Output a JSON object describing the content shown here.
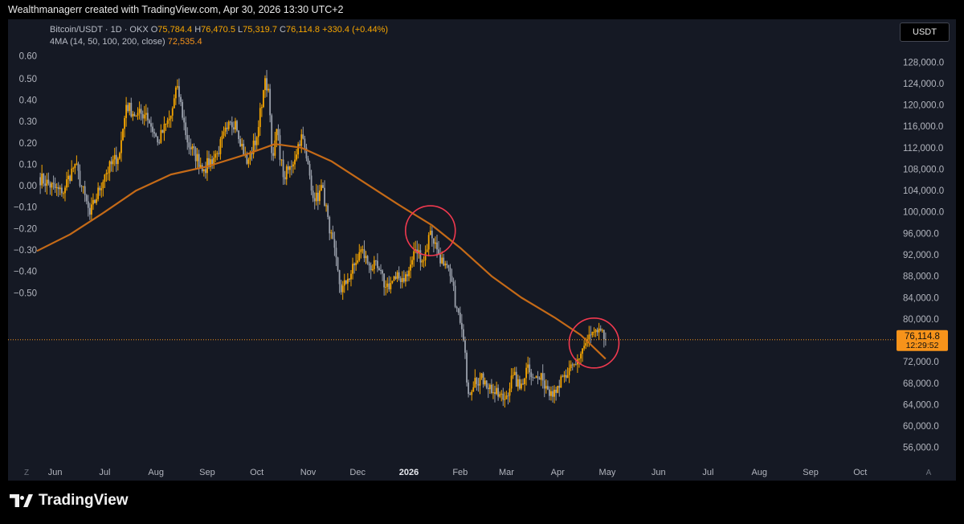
{
  "header": {
    "text": "Wealthmanagerr created with TradingView.com, Apr 30, 2026 13:30 UTC+2"
  },
  "legend": {
    "symbol": "Bitcoin/USDT · 1D · OKX",
    "open_label": "O",
    "open": "75,784.4",
    "high_label": "H",
    "high": "76,470.5",
    "low_label": "L",
    "low": "75,319.7",
    "close_label": "C",
    "close": "76,114.8",
    "change": "+330.4 (+0.44%)",
    "ma_label": "4MA (14, 50, 100, 200, close)",
    "ma_value": "72,535.4"
  },
  "currency_button": "USDT",
  "price_badge": {
    "price": "76,114.8",
    "countdown": "12:29:52"
  },
  "footer": {
    "brand": "TradingView"
  },
  "nav": {
    "left": "Z",
    "right": "A"
  },
  "colors": {
    "panel_bg": "#151924",
    "ma_line": "#c56a17",
    "candle_gray": "#9aa0ab",
    "candle_orange": "#f7a600",
    "circle": "#f0394f",
    "last_price": "#f7931a"
  },
  "chart_data": {
    "type": "candlestick",
    "title": "Bitcoin/USDT · 1D · OKX",
    "right_axis": {
      "unit": "USDT",
      "ticks": [
        "128,000.0",
        "124,000.0",
        "120,000.0",
        "116,000.0",
        "112,000.0",
        "108,000.0",
        "104,000.0",
        "100,000.0",
        "96,000.0",
        "92,000.0",
        "88,000.0",
        "84,000.0",
        "80,000.0",
        "76,000.0",
        "72,000.0",
        "68,000.0",
        "64,000.0",
        "60,000.0",
        "56,000.0"
      ],
      "tick_values": [
        128000,
        124000,
        120000,
        116000,
        112000,
        108000,
        104000,
        100000,
        96000,
        92000,
        88000,
        84000,
        80000,
        76000,
        72000,
        68000,
        64000,
        60000,
        56000
      ],
      "range": [
        54000,
        133000
      ]
    },
    "left_axis": {
      "ticks": [
        "0.60",
        "0.50",
        "0.40",
        "0.30",
        "0.20",
        "0.10",
        "0.00",
        "−0.10",
        "−0.20",
        "−0.30",
        "−0.40",
        "−0.50"
      ],
      "tick_values": [
        0.6,
        0.5,
        0.4,
        0.3,
        0.2,
        0.1,
        0.0,
        -0.1,
        -0.2,
        -0.3,
        -0.4,
        -0.5
      ]
    },
    "x_axis": {
      "labels": [
        "Jun",
        "Jul",
        "Aug",
        "Sep",
        "Oct",
        "Nov",
        "Dec",
        "2026",
        "Feb",
        "Mar",
        "Apr",
        "May",
        "Jun",
        "Jul",
        "Aug",
        "Sep",
        "Oct"
      ],
      "dates": [
        "2025-06-01",
        "2025-07-01",
        "2025-08-01",
        "2025-09-01",
        "2025-10-01",
        "2025-11-01",
        "2025-12-01",
        "2026-01-01",
        "2026-02-01",
        "2026-03-01",
        "2026-04-01",
        "2026-05-01",
        "2026-06-01",
        "2026-07-01",
        "2026-08-01",
        "2026-09-01",
        "2026-10-01"
      ],
      "bold": [
        "2026"
      ],
      "range": [
        "2025-05-21",
        "2026-10-22"
      ]
    },
    "price_anchors": [
      [
        "2025-05-22",
        106500
      ],
      [
        "2025-06-05",
        103500
      ],
      [
        "2025-06-13",
        109000
      ],
      [
        "2025-06-22",
        99500
      ],
      [
        "2025-07-01",
        107000
      ],
      [
        "2025-07-10",
        111000
      ],
      [
        "2025-07-14",
        120000
      ],
      [
        "2025-07-20",
        118000
      ],
      [
        "2025-07-26",
        118500
      ],
      [
        "2025-08-02",
        113000
      ],
      [
        "2025-08-10",
        118000
      ],
      [
        "2025-08-14",
        123500
      ],
      [
        "2025-08-20",
        113000
      ],
      [
        "2025-08-30",
        108000
      ],
      [
        "2025-09-07",
        111000
      ],
      [
        "2025-09-13",
        115500
      ],
      [
        "2025-09-18",
        117000
      ],
      [
        "2025-09-25",
        109000
      ],
      [
        "2025-10-01",
        114000
      ],
      [
        "2025-10-06",
        125000
      ],
      [
        "2025-10-08",
        123000
      ],
      [
        "2025-10-10",
        111000
      ],
      [
        "2025-10-11",
        110500
      ],
      [
        "2025-10-13",
        115500
      ],
      [
        "2025-10-17",
        106500
      ],
      [
        "2025-10-22",
        108500
      ],
      [
        "2025-10-28",
        114500
      ],
      [
        "2025-10-31",
        110000
      ],
      [
        "2025-11-05",
        102000
      ],
      [
        "2025-11-10",
        104500
      ],
      [
        "2025-11-14",
        96000
      ],
      [
        "2025-11-18",
        91500
      ],
      [
        "2025-11-21",
        85000
      ],
      [
        "2025-11-25",
        87500
      ],
      [
        "2025-11-30",
        90500
      ],
      [
        "2025-12-03",
        93000
      ],
      [
        "2025-12-08",
        90000
      ],
      [
        "2025-12-13",
        89500
      ],
      [
        "2025-12-18",
        86000
      ],
      [
        "2025-12-24",
        87500
      ],
      [
        "2025-12-31",
        88000
      ],
      [
        "2026-01-05",
        93000
      ],
      [
        "2026-01-10",
        91000
      ],
      [
        "2026-01-14",
        96500
      ],
      [
        "2026-01-18",
        93000
      ],
      [
        "2026-01-22",
        90000
      ],
      [
        "2026-01-26",
        88000
      ],
      [
        "2026-01-30",
        82000
      ],
      [
        "2026-02-03",
        76000
      ],
      [
        "2026-02-06",
        66000
      ],
      [
        "2026-02-10",
        69000
      ],
      [
        "2026-02-16",
        68500
      ],
      [
        "2026-02-22",
        66000
      ],
      [
        "2026-02-28",
        65000
      ],
      [
        "2026-03-05",
        69500
      ],
      [
        "2026-03-09",
        67000
      ],
      [
        "2026-03-14",
        71500
      ],
      [
        "2026-03-18",
        69000
      ],
      [
        "2026-03-23",
        68500
      ],
      [
        "2026-03-28",
        66500
      ],
      [
        "2026-04-01",
        67500
      ],
      [
        "2026-04-07",
        69500
      ],
      [
        "2026-04-12",
        71500
      ],
      [
        "2026-04-16",
        74500
      ],
      [
        "2026-04-21",
        77000
      ],
      [
        "2026-04-25",
        77500
      ],
      [
        "2026-04-30",
        76114.8
      ]
    ],
    "moving_average": [
      [
        "2025-05-21",
        92700
      ],
      [
        "2025-06-10",
        95800
      ],
      [
        "2025-07-01",
        100000
      ],
      [
        "2025-07-20",
        104000
      ],
      [
        "2025-08-10",
        107000
      ],
      [
        "2025-09-01",
        108500
      ],
      [
        "2025-09-25",
        110800
      ],
      [
        "2025-10-12",
        112700
      ],
      [
        "2025-10-28",
        112000
      ],
      [
        "2025-11-15",
        109500
      ],
      [
        "2025-12-05",
        105500
      ],
      [
        "2025-12-25",
        101500
      ],
      [
        "2026-01-15",
        97500
      ],
      [
        "2026-02-01",
        93300
      ],
      [
        "2026-02-20",
        88000
      ],
      [
        "2026-03-10",
        84000
      ],
      [
        "2026-03-30",
        80300
      ],
      [
        "2026-04-15",
        77000
      ],
      [
        "2026-04-30",
        72535.4
      ]
    ],
    "last_price": 76114.8,
    "annotations": [
      {
        "type": "circle",
        "date": "2026-01-14",
        "price": 96500
      },
      {
        "type": "circle",
        "date": "2026-04-23",
        "price": 75500
      }
    ]
  }
}
